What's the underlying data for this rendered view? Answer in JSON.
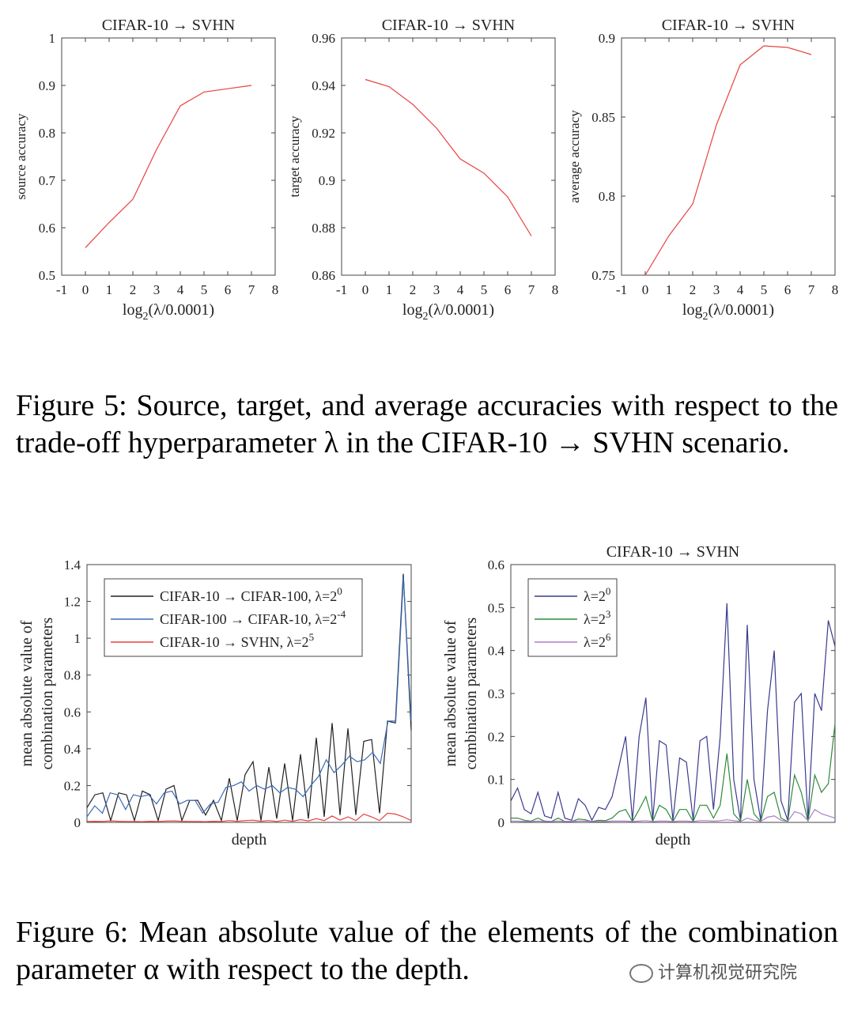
{
  "chart_data": [
    {
      "type": "line",
      "title": "CIFAR-10 → SVHN",
      "xlabel": "log₂(λ/0.0001)",
      "ylabel": "source accuracy",
      "xlim": [
        -1,
        8
      ],
      "ylim": [
        0.5,
        1
      ],
      "xticks": [
        "-1",
        "0",
        "1",
        "2",
        "3",
        "4",
        "5",
        "6",
        "7",
        "8"
      ],
      "yticks": [
        "0.5",
        "0.6",
        "0.7",
        "0.8",
        "0.9",
        "1"
      ],
      "series": [
        {
          "name": "source accuracy",
          "color": "#e8423f",
          "x": [
            0,
            1,
            2,
            3,
            4,
            5,
            6,
            7
          ],
          "values": [
            0.558,
            0.611,
            0.66,
            0.765,
            0.857,
            0.886,
            0.893,
            0.9
          ]
        }
      ]
    },
    {
      "type": "line",
      "title": "CIFAR-10 → SVHN",
      "xlabel": "log₂(λ/0.0001)",
      "ylabel": "target accuracy",
      "xlim": [
        -1,
        8
      ],
      "ylim": [
        0.86,
        0.96
      ],
      "xticks": [
        "-1",
        "0",
        "1",
        "2",
        "3",
        "4",
        "5",
        "6",
        "7",
        "8"
      ],
      "yticks": [
        "0.86",
        "0.88",
        "0.9",
        "0.92",
        "0.94",
        "0.96"
      ],
      "series": [
        {
          "name": "target accuracy",
          "color": "#e8423f",
          "x": [
            0,
            1,
            2,
            3,
            4,
            5,
            6,
            7
          ],
          "values": [
            0.9425,
            0.9395,
            0.932,
            0.922,
            0.909,
            0.903,
            0.893,
            0.8765
          ]
        }
      ]
    },
    {
      "type": "line",
      "title": "CIFAR-10 → SVHN",
      "xlabel": "log₂(λ/0.0001)",
      "ylabel": "average accuracy",
      "xlim": [
        -1,
        8
      ],
      "ylim": [
        0.75,
        0.9
      ],
      "xticks": [
        "-1",
        "0",
        "1",
        "2",
        "3",
        "4",
        "5",
        "6",
        "7",
        "8"
      ],
      "yticks": [
        "0.75",
        "0.8",
        "0.85",
        "0.9"
      ],
      "series": [
        {
          "name": "average accuracy",
          "color": "#e8423f",
          "x": [
            0,
            1,
            2,
            3,
            4,
            5,
            6,
            7
          ],
          "values": [
            0.75,
            0.775,
            0.795,
            0.845,
            0.883,
            0.895,
            0.894,
            0.8895
          ]
        }
      ]
    },
    {
      "type": "line",
      "title": "",
      "xlabel": "depth",
      "ylabel": "mean absolute value of combination parameters",
      "ylabel_lines": [
        "mean absolute value of",
        "combination parameters"
      ],
      "xlim": [
        0,
        57
      ],
      "ylim": [
        0,
        1.4
      ],
      "xticks": [],
      "yticks": [
        "0",
        "0.2",
        "0.4",
        "0.6",
        "0.8",
        "1",
        "1.2",
        "1.4"
      ],
      "legend_position": "top-left",
      "series": [
        {
          "name": "CIFAR-10 → CIFAR-100, λ=2",
          "sup": "0",
          "color": "#222222",
          "values": [
            0.08,
            0.15,
            0.16,
            0.01,
            0.16,
            0.15,
            0.01,
            0.17,
            0.15,
            0.01,
            0.18,
            0.2,
            0.01,
            0.12,
            0.12,
            0.04,
            0.12,
            0.01,
            0.24,
            0.01,
            0.26,
            0.33,
            0.01,
            0.3,
            0.02,
            0.32,
            0.01,
            0.37,
            0.02,
            0.46,
            0.03,
            0.54,
            0.04,
            0.51,
            0.04,
            0.44,
            0.45,
            0.05,
            0.55,
            0.54,
            1.35,
            0.5
          ]
        },
        {
          "name": "CIFAR-100 → CIFAR-10, λ=2",
          "sup": "-4",
          "color": "#3a6bb5",
          "values": [
            0.03,
            0.09,
            0.05,
            0.16,
            0.15,
            0.07,
            0.15,
            0.14,
            0.15,
            0.1,
            0.16,
            0.17,
            0.1,
            0.12,
            0.12,
            0.05,
            0.1,
            0.11,
            0.19,
            0.2,
            0.22,
            0.17,
            0.2,
            0.18,
            0.2,
            0.16,
            0.19,
            0.18,
            0.14,
            0.2,
            0.25,
            0.34,
            0.27,
            0.31,
            0.36,
            0.33,
            0.34,
            0.38,
            0.32,
            0.55,
            0.55,
            1.33,
            0.55
          ]
        },
        {
          "name": "CIFAR-10 → SVHN, λ=2",
          "sup": "5",
          "color": "#e8423f",
          "values": [
            0.005,
            0.006,
            0.005,
            0.008,
            0.006,
            0.005,
            0.005,
            0.004,
            0.006,
            0.005,
            0.007,
            0.008,
            0.006,
            0.005,
            0.005,
            0.004,
            0.006,
            0.005,
            0.01,
            0.006,
            0.01,
            0.012,
            0.006,
            0.01,
            0.005,
            0.012,
            0.006,
            0.015,
            0.008,
            0.02,
            0.01,
            0.035,
            0.012,
            0.03,
            0.01,
            0.045,
            0.03,
            0.01,
            0.05,
            0.045,
            0.03,
            0.01
          ]
        }
      ]
    },
    {
      "type": "line",
      "title": "CIFAR-10 → SVHN",
      "xlabel": "depth",
      "ylabel": "mean absolute value of combination parameters",
      "ylabel_lines": [
        "mean absolute value of",
        "combination parameters"
      ],
      "xlim": [
        0,
        57
      ],
      "ylim": [
        0,
        0.6
      ],
      "xticks": [],
      "yticks": [
        "0",
        "0.1",
        "0.2",
        "0.3",
        "0.4",
        "0.5",
        "0.6"
      ],
      "legend_position": "top-left",
      "series": [
        {
          "name": "λ=2",
          "sup": "0",
          "color": "#3a3a8f",
          "values": [
            0.05,
            0.08,
            0.03,
            0.02,
            0.07,
            0.015,
            0.01,
            0.07,
            0.01,
            0.005,
            0.055,
            0.04,
            0.005,
            0.035,
            0.03,
            0.06,
            0.13,
            0.2,
            0.005,
            0.2,
            0.29,
            0.005,
            0.19,
            0.18,
            0.005,
            0.15,
            0.14,
            0.005,
            0.19,
            0.2,
            0.03,
            0.2,
            0.51,
            0.1,
            0.005,
            0.46,
            0.1,
            0.005,
            0.26,
            0.4,
            0.05,
            0.005,
            0.28,
            0.3,
            0.005,
            0.3,
            0.26,
            0.47,
            0.41
          ]
        },
        {
          "name": "λ=2",
          "sup": "3",
          "color": "#2e8b3a",
          "values": [
            0.01,
            0.01,
            0.005,
            0.003,
            0.01,
            0.003,
            0.002,
            0.01,
            0.002,
            0.002,
            0.008,
            0.006,
            0.002,
            0.005,
            0.004,
            0.01,
            0.025,
            0.03,
            0.002,
            0.03,
            0.06,
            0.002,
            0.04,
            0.03,
            0.002,
            0.03,
            0.03,
            0.002,
            0.04,
            0.04,
            0.01,
            0.04,
            0.16,
            0.02,
            0.002,
            0.1,
            0.02,
            0.002,
            0.06,
            0.07,
            0.01,
            0.002,
            0.11,
            0.07,
            0.002,
            0.11,
            0.07,
            0.09,
            0.23
          ]
        },
        {
          "name": "λ=2",
          "sup": "6",
          "color": "#b07cc6",
          "values": [
            0.003,
            0.003,
            0.002,
            0.002,
            0.003,
            0.002,
            0.002,
            0.003,
            0.002,
            0.002,
            0.003,
            0.003,
            0.002,
            0.002,
            0.002,
            0.003,
            0.003,
            0.003,
            0.002,
            0.003,
            0.004,
            0.002,
            0.003,
            0.003,
            0.002,
            0.003,
            0.003,
            0.002,
            0.004,
            0.004,
            0.003,
            0.004,
            0.006,
            0.004,
            0.002,
            0.01,
            0.005,
            0.002,
            0.012,
            0.015,
            0.005,
            0.002,
            0.025,
            0.02,
            0.004,
            0.03,
            0.02,
            0.015,
            0.01
          ]
        }
      ]
    }
  ],
  "figure5_caption": "Figure 5: Source, target, and average accuracies with respect to the trade-off hyperparameter λ in the CIFAR-10 → SVHN scenario.",
  "figure6_caption": "Figure 6: Mean absolute value of the elements of the combination parameter α with respect to the depth.",
  "watermark_text": "计算机视觉研究院"
}
